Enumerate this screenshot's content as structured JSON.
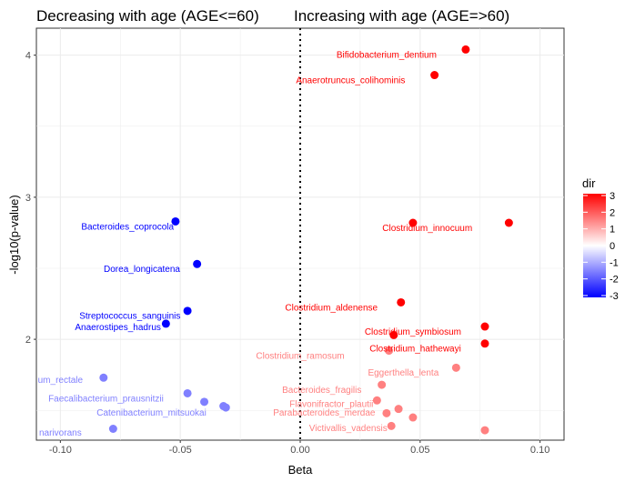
{
  "chart_data": {
    "type": "scatter",
    "titles": {
      "left": "Decreasing with age (AGE<=60)",
      "right": "Increasing with age (AGE=>60)"
    },
    "xlabel": "Beta",
    "ylabel": "-log10(p-value)",
    "xlim": [
      -0.11,
      0.11
    ],
    "ylim": [
      1.29,
      4.19
    ],
    "x_ticks": [
      {
        "value": -0.1,
        "label": "-0.10"
      },
      {
        "value": -0.05,
        "label": "-0.05"
      },
      {
        "value": 0,
        "label": "0.00"
      },
      {
        "value": 0.05,
        "label": "0.05"
      },
      {
        "value": 0.1,
        "label": "0.10"
      }
    ],
    "y_ticks": [
      {
        "value": 2,
        "label": "2"
      },
      {
        "value": 3,
        "label": "3"
      },
      {
        "value": 4,
        "label": "4"
      }
    ],
    "vline": 0,
    "grid": true,
    "legend": {
      "title": "dir",
      "position": "right",
      "ticks": [
        {
          "value": 3,
          "label": "3"
        },
        {
          "value": 2,
          "label": "2"
        },
        {
          "value": 1,
          "label": "1"
        },
        {
          "value": 0,
          "label": "0"
        },
        {
          "value": -1,
          "label": "-1"
        },
        {
          "value": -2,
          "label": "-2"
        },
        {
          "value": -3,
          "label": "-3"
        }
      ],
      "low_color": "#0000ff",
      "mid_color": "#ffffff",
      "high_color": "#ff0000"
    },
    "points": [
      {
        "x": 0.069,
        "y": 4.04,
        "dir": 3,
        "label": "Bifidobacterium_dentium",
        "lx": 0.036,
        "ly": 4.0
      },
      {
        "x": 0.056,
        "y": 3.86,
        "dir": 3,
        "label": "Anaerotruncus_colihominis",
        "lx": 0.021,
        "ly": 3.82
      },
      {
        "x": 0.047,
        "y": 2.82,
        "dir": 3,
        "label": "",
        "lx": 0,
        "ly": 0
      },
      {
        "x": 0.087,
        "y": 2.82,
        "dir": 3,
        "label": "Clostridium_innocuum",
        "lx": 0.053,
        "ly": 2.78
      },
      {
        "x": 0.042,
        "y": 2.26,
        "dir": 3,
        "label": "Clostridium_aldenense",
        "lx": 0.013,
        "ly": 2.22
      },
      {
        "x": 0.077,
        "y": 2.09,
        "dir": 3,
        "label": "Clostridium_symbiosum",
        "lx": 0.047,
        "ly": 2.05
      },
      {
        "x": 0.039,
        "y": 2.03,
        "dir": 3,
        "label": "",
        "lx": 0,
        "ly": 0
      },
      {
        "x": 0.077,
        "y": 1.97,
        "dir": 3,
        "label": "Clostridium_hathewayi",
        "lx": 0.048,
        "ly": 1.93
      },
      {
        "x": 0.037,
        "y": 1.92,
        "dir": 1.5,
        "label": "Clostridium_ramosum",
        "lx": 0.0,
        "ly": 1.88
      },
      {
        "x": 0.065,
        "y": 1.8,
        "dir": 1.5,
        "label": "Eggerthella_lenta",
        "lx": 0.043,
        "ly": 1.76
      },
      {
        "x": 0.034,
        "y": 1.68,
        "dir": 1.5,
        "label": "Bacteroides_fragilis",
        "lx": 0.009,
        "ly": 1.64
      },
      {
        "x": 0.032,
        "y": 1.57,
        "dir": 1.5,
        "label": "Flavonifractor_plautii",
        "lx": 0.013,
        "ly": 1.54
      },
      {
        "x": 0.041,
        "y": 1.51,
        "dir": 1.5,
        "label": "",
        "lx": 0,
        "ly": 0
      },
      {
        "x": 0.036,
        "y": 1.48,
        "dir": 1.5,
        "label": "Parabacteroides_merdae",
        "lx": 0.01,
        "ly": 1.48
      },
      {
        "x": 0.047,
        "y": 1.45,
        "dir": 1.5,
        "label": "",
        "lx": 0,
        "ly": 0
      },
      {
        "x": 0.038,
        "y": 1.39,
        "dir": 1.5,
        "label": "Victivallis_vadensis",
        "lx": 0.02,
        "ly": 1.37
      },
      {
        "x": 0.077,
        "y": 1.36,
        "dir": 1.5,
        "label": "",
        "lx": 0,
        "ly": 0
      },
      {
        "x": -0.052,
        "y": 2.83,
        "dir": -3,
        "label": "Bacteroides_coprocola",
        "lx": -0.072,
        "ly": 2.79
      },
      {
        "x": -0.043,
        "y": 2.53,
        "dir": -3,
        "label": "Dorea_longicatena",
        "lx": -0.066,
        "ly": 2.49
      },
      {
        "x": -0.047,
        "y": 2.2,
        "dir": -3,
        "label": "Streptococcus_sanguinis",
        "lx": -0.071,
        "ly": 2.16
      },
      {
        "x": -0.056,
        "y": 2.11,
        "dir": -3,
        "label": "Anaerostipes_hadrus",
        "lx": -0.076,
        "ly": 2.08
      },
      {
        "x": -0.082,
        "y": 1.73,
        "dir": -1.5,
        "label": "um_rectale",
        "lx": -0.1,
        "ly": 1.71
      },
      {
        "x": -0.047,
        "y": 1.62,
        "dir": -1.5,
        "label": "Faecalibacterium_prausnitzii",
        "lx": -0.081,
        "ly": 1.58
      },
      {
        "x": -0.04,
        "y": 1.56,
        "dir": -1.5,
        "label": "",
        "lx": 0,
        "ly": 0
      },
      {
        "x": -0.032,
        "y": 1.53,
        "dir": -1.5,
        "label": "Catenibacterium_mitsuokai",
        "lx": -0.062,
        "ly": 1.48
      },
      {
        "x": -0.031,
        "y": 1.52,
        "dir": -1.5,
        "label": "",
        "lx": 0,
        "ly": 0
      },
      {
        "x": -0.078,
        "y": 1.37,
        "dir": -1.5,
        "label": "narivorans",
        "lx": -0.1,
        "ly": 1.34
      }
    ]
  }
}
